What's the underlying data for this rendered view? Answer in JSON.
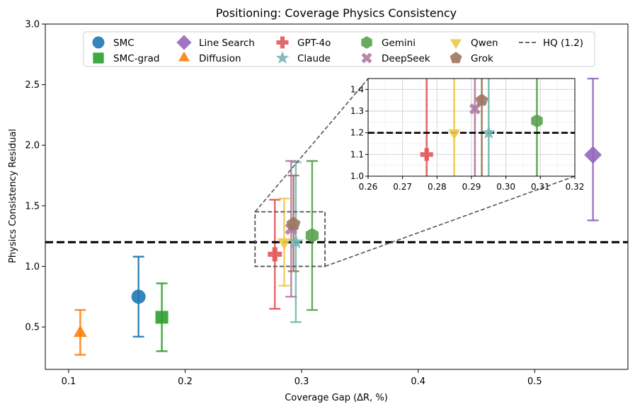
{
  "chart_data": {
    "type": "scatter",
    "title": "Positioning: Coverage Physics Consistency",
    "xlabel": "Coverage Gap (ΔR, %)",
    "ylabel": "Physics Consistency Residual",
    "xlim": [
      0.08,
      0.58
    ],
    "ylim": [
      0.15,
      3.0
    ],
    "xticks": [
      0.1,
      0.2,
      0.3,
      0.4,
      0.5
    ],
    "xtick_labels": [
      "0.1",
      "0.2",
      "0.3",
      "0.4",
      "0.5"
    ],
    "yticks": [
      0.5,
      1.0,
      1.5,
      2.0,
      2.5,
      3.0
    ],
    "ytick_labels": [
      "0.5",
      "1.0",
      "1.5",
      "2.0",
      "2.5",
      "3.0"
    ],
    "grid": false,
    "legend_position": "top-center",
    "reference_line": {
      "label": "HQ (1.2)",
      "y": 1.2,
      "color": "#000000"
    },
    "series": [
      {
        "name": "SMC",
        "x": 0.16,
        "y": 0.75,
        "ylow": 0.42,
        "yhigh": 1.08,
        "color": "#1f77b4",
        "marker": "circle"
      },
      {
        "name": "SMC-grad",
        "x": 0.18,
        "y": 0.58,
        "ylow": 0.3,
        "yhigh": 0.86,
        "color": "#2ca02c",
        "marker": "square"
      },
      {
        "name": "Line Search",
        "x": 0.55,
        "y": 1.92,
        "ylow": 1.38,
        "yhigh": 2.55,
        "color": "#9467bd",
        "marker": "diamond"
      },
      {
        "name": "Diffusion",
        "x": 0.11,
        "y": 0.45,
        "ylow": 0.27,
        "yhigh": 0.64,
        "color": "#ff7f0e",
        "marker": "triangle-up"
      },
      {
        "name": "GPT-4o",
        "x": 0.277,
        "y": 1.1,
        "ylow": 0.65,
        "yhigh": 1.55,
        "color": "#e15759",
        "marker": "plus"
      },
      {
        "name": "Claude",
        "x": 0.295,
        "y": 1.2,
        "ylow": 0.54,
        "yhigh": 1.86,
        "color": "#76b7b2",
        "marker": "star"
      },
      {
        "name": "Gemini",
        "x": 0.309,
        "y": 1.255,
        "ylow": 0.64,
        "yhigh": 1.87,
        "color": "#59a14f",
        "marker": "hexagon"
      },
      {
        "name": "DeepSeek",
        "x": 0.291,
        "y": 1.31,
        "ylow": 0.75,
        "yhigh": 1.87,
        "color": "#b07aa1",
        "marker": "x"
      },
      {
        "name": "Qwen",
        "x": 0.285,
        "y": 1.2,
        "ylow": 0.84,
        "yhigh": 1.56,
        "color": "#edc948",
        "marker": "triangle-down"
      },
      {
        "name": "Grok",
        "x": 0.293,
        "y": 1.35,
        "ylow": 0.96,
        "yhigh": 1.75,
        "color": "#9c755f",
        "marker": "pentagon"
      }
    ],
    "zoom_region": {
      "xlim": [
        0.26,
        0.32
      ],
      "ylim": [
        1.0,
        1.45
      ]
    },
    "inset": {
      "xlim": [
        0.26,
        0.32
      ],
      "ylim": [
        1.0,
        1.45
      ],
      "xticks": [
        0.26,
        0.27,
        0.28,
        0.29,
        0.3,
        0.31,
        0.32
      ],
      "xtick_labels": [
        "0.26",
        "0.27",
        "0.28",
        "0.29",
        "0.30",
        "0.31",
        "0.32"
      ],
      "yticks": [
        1.0,
        1.1,
        1.2,
        1.3,
        1.4
      ],
      "ytick_labels": [
        "1.0",
        "1.1",
        "1.2",
        "1.3",
        "1.4"
      ],
      "grid": true
    }
  }
}
